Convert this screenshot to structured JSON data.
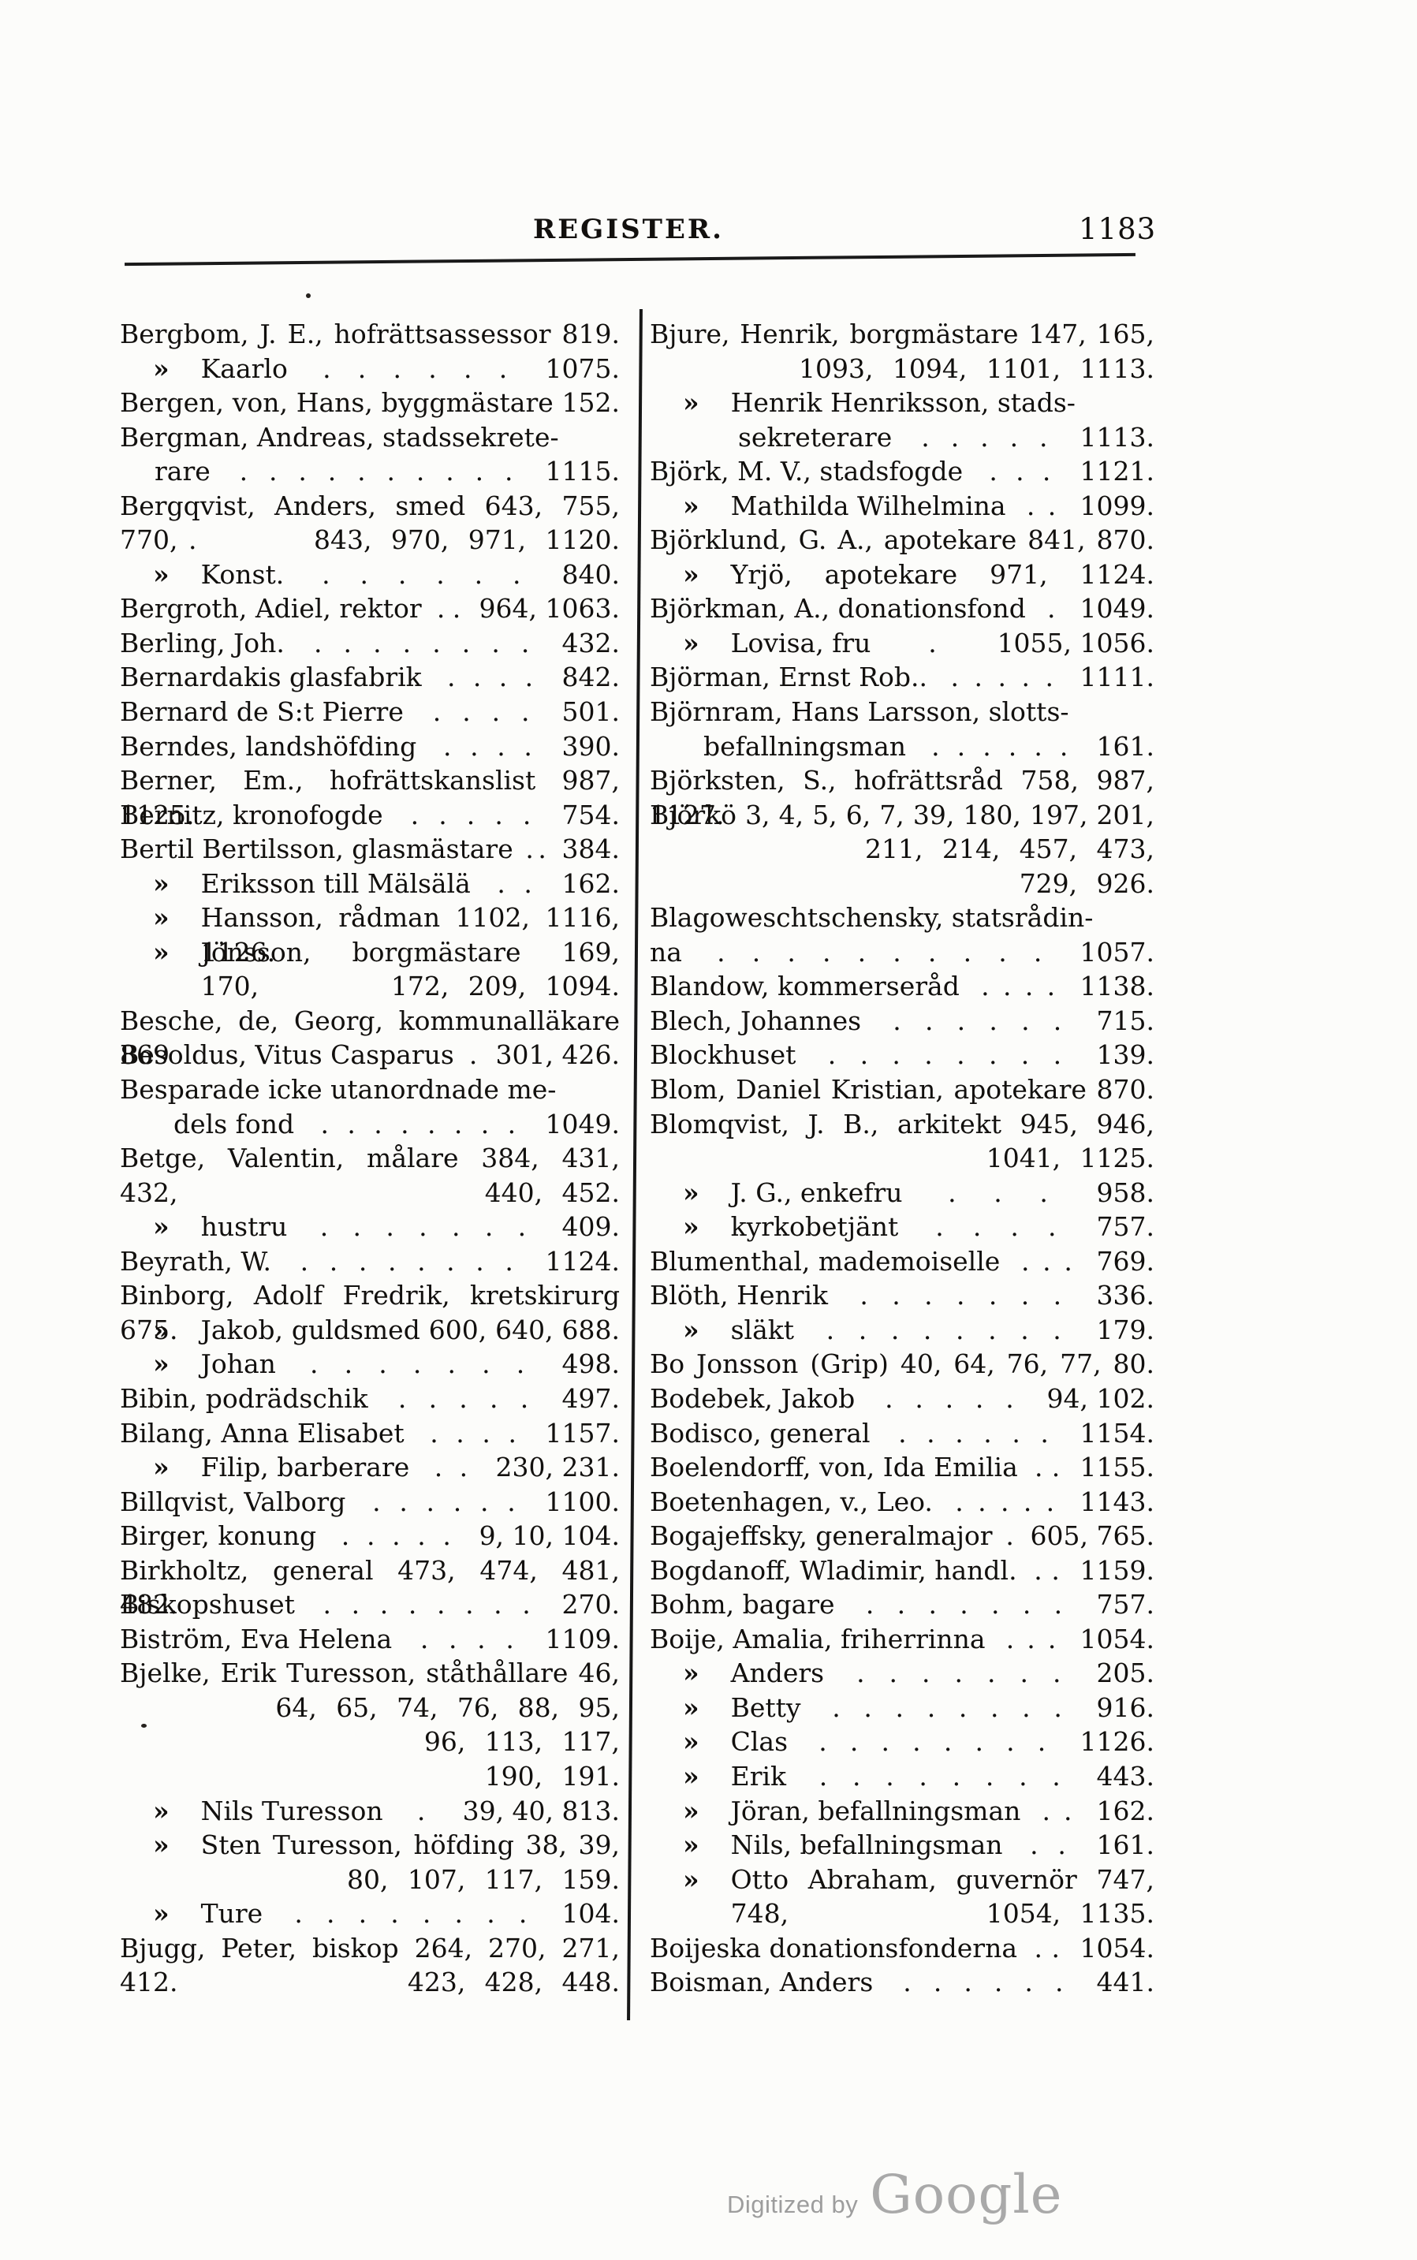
{
  "header": {
    "title": "REGISTER.",
    "page_number": "1183"
  },
  "footer": {
    "digitized_by": "Digitized by",
    "brand": "Google"
  },
  "index": {
    "left": [
      {
        "s": "m",
        "t": "Bergbom, J. E., hofrättsassessor",
        "d": "",
        "p": "819."
      },
      {
        "s": "s",
        "m": "»",
        "t": "Kaarlo",
        "d": ". . . . . .",
        "p": "1075."
      },
      {
        "s": "m",
        "t": "Bergen, von, Hans, byggmästare",
        "d": "",
        "p": "152."
      },
      {
        "s": "m",
        "t": "Bergman, Andreas, stadssekrete-",
        "d": "",
        "p": ""
      },
      {
        "s": "h1",
        "t": "rare",
        "d": ". . . . . . . . . .",
        "p": "1115."
      },
      {
        "s": "m",
        "t": "Bergqvist, Anders, smed",
        "d": "",
        "p": "643, 755, 770,"
      },
      {
        "s": "c",
        "m": ".",
        "t": "",
        "d": "",
        "p": "843, 970, 971, 1120."
      },
      {
        "s": "s",
        "m": "»",
        "t": "Konst.",
        "d": ". . . . . .",
        "p": "840."
      },
      {
        "s": "m",
        "t": "Bergroth, Adiel, rektor",
        "d": ". .",
        "p": "964, 1063."
      },
      {
        "s": "m",
        "t": "Berling, Joh.",
        "d": ". . . . . . . .",
        "p": "432."
      },
      {
        "s": "m",
        "t": "Bernardakis glasfabrik",
        "d": ". . . .",
        "p": "842."
      },
      {
        "s": "m",
        "t": "Bernard de S:t Pierre",
        "d": ". . . .",
        "p": "501."
      },
      {
        "s": "m",
        "t": "Berndes, landshöfding",
        "d": ". . . .",
        "p": "390."
      },
      {
        "s": "m",
        "t": "Berner, Em., hofrättskanslist",
        "d": "",
        "p": "987, 1125."
      },
      {
        "s": "m",
        "t": "Bernitz, kronofogde",
        "d": ". . . . .",
        "p": "754."
      },
      {
        "s": "m",
        "t": "Bertil Bertilsson, glasmästare",
        "d": ". .",
        "p": "384."
      },
      {
        "s": "s",
        "m": "»",
        "t": "Eriksson till Mälsälä",
        "d": ". .",
        "p": "162."
      },
      {
        "s": "s",
        "m": "»",
        "t": "Hansson, rådman",
        "d": "",
        "p": "1102, 1116, 1126."
      },
      {
        "s": "s",
        "m": "»",
        "t": "Jönsson, borgmästare",
        "d": "",
        "p": "169, 170,"
      },
      {
        "s": "c",
        "t": "",
        "d": "",
        "p": "172, 209, 1094."
      },
      {
        "s": "m",
        "t": "Besche, de, Georg, kommunalläkare",
        "d": "",
        "p": "869"
      },
      {
        "s": "m",
        "t": "Besoldus, Vitus Casparus",
        "d": ".",
        "p": "301, 426."
      },
      {
        "s": "m",
        "t": "Besparade icke utanordnade me-",
        "d": "",
        "p": ""
      },
      {
        "s": "h2",
        "t": "dels fond",
        "d": ". . . . . . . .",
        "p": "1049."
      },
      {
        "s": "m",
        "t": "Betge, Valentin, målare",
        "d": "",
        "p": "384, 431, 432,"
      },
      {
        "s": "c",
        "t": "",
        "d": "",
        "p": "440, 452."
      },
      {
        "s": "s",
        "m": "»",
        "t": "hustru",
        "d": ". . . . . . .",
        "p": "409."
      },
      {
        "s": "m",
        "t": "Beyrath, W.",
        "d": ". . . . . . . .",
        "p": "1124."
      },
      {
        "s": "m",
        "t": "Binborg, Adolf Fredrik, kretskirurg",
        "d": "",
        "p": "675."
      },
      {
        "s": "s",
        "m": "»",
        "t": "Jakob, guldsmed",
        "d": "",
        "p": "600, 640, 688."
      },
      {
        "s": "s",
        "m": "»",
        "t": "Johan",
        "d": ". . . . . . .",
        "p": "498."
      },
      {
        "s": "m",
        "t": "Bibin, podrädschik",
        "d": ". . . . .",
        "p": "497."
      },
      {
        "s": "m",
        "t": "Bilang, Anna Elisabet",
        "d": ". . . .",
        "p": "1157."
      },
      {
        "s": "s",
        "m": "»",
        "t": "Filip, barberare",
        "d": ". .",
        "p": "230, 231."
      },
      {
        "s": "m",
        "t": "Billqvist, Valborg",
        "d": ". . . . . .",
        "p": "1100."
      },
      {
        "s": "m",
        "t": "Birger, konung",
        "d": ". . . . .",
        "p": "9, 10, 104."
      },
      {
        "s": "m",
        "t": "Birkholtz, general",
        "d": "",
        "p": "473, 474, 481, 482."
      },
      {
        "s": "m",
        "t": "Biskopshuset",
        "d": ". . . . . . . .",
        "p": "270."
      },
      {
        "s": "m",
        "t": "Biström, Eva Helena",
        "d": ". . . .",
        "p": "1109."
      },
      {
        "s": "m",
        "t": "Bjelke, Erik Turesson, ståthållare",
        "d": "",
        "p": "46,"
      },
      {
        "s": "c",
        "t": "",
        "d": "",
        "p": "64, 65, 74, 76, 88, 95,"
      },
      {
        "s": "c",
        "t": "",
        "d": "",
        "p": "96, 113, 117,"
      },
      {
        "s": "c",
        "t": "",
        "d": "",
        "p": "190, 191."
      },
      {
        "s": "s",
        "m": "»",
        "t": "Nils Turesson",
        "d": ".",
        "p": "39, 40, 813."
      },
      {
        "s": "s",
        "m": "»",
        "t": "Sten Turesson, höfding",
        "d": "",
        "p": "38, 39,"
      },
      {
        "s": "c",
        "t": "",
        "d": "",
        "p": "80, 107, 117, 159."
      },
      {
        "s": "s",
        "m": "»",
        "t": "Ture",
        "d": ". . . . . . . .",
        "p": "104."
      },
      {
        "s": "m",
        "t": "Bjugg, Peter, biskop",
        "d": "",
        "p": "264, 270, 271, 412."
      },
      {
        "s": "c",
        "t": "",
        "d": "",
        "p": "423, 428, 448."
      }
    ],
    "right": [
      {
        "s": "m",
        "t": "Bjure, Henrik, borgmästare",
        "d": "",
        "p": "147, 165,"
      },
      {
        "s": "c",
        "t": "",
        "d": "",
        "p": "1093, 1094, 1101, 1113."
      },
      {
        "s": "s",
        "m": "»",
        "t": "Henrik Henriksson, stads-",
        "d": "",
        "p": ""
      },
      {
        "s": "h3",
        "t": "sekreterare",
        "d": ". . . . .",
        "p": "1113."
      },
      {
        "s": "m",
        "t": "Björk, M. V., stadsfogde",
        "d": ". . .",
        "p": "1121."
      },
      {
        "s": "s",
        "m": "»",
        "t": "Mathilda Wilhelmina",
        "d": ". .",
        "p": "1099."
      },
      {
        "s": "m",
        "t": "Björklund, G. A., apotekare",
        "d": "",
        "p": "841, 870."
      },
      {
        "s": "s",
        "m": "»",
        "t": "Yrjö, apotekare",
        "d": "",
        "p": "971, 1124."
      },
      {
        "s": "m",
        "t": "Björkman, A., donationsfond",
        "d": ".",
        "p": "1049."
      },
      {
        "s": "s",
        "m": "»",
        "t": "Lovisa, fru",
        "d": ".",
        "p": "1055, 1056."
      },
      {
        "s": "m",
        "t": "Björman, Ernst Rob..",
        "d": ". . . . .",
        "p": "1111."
      },
      {
        "s": "m",
        "t": "Björnram, Hans Larsson, slotts-",
        "d": "",
        "p": ""
      },
      {
        "s": "h2",
        "t": "befallningsman",
        "d": ". . . . . .",
        "p": "161."
      },
      {
        "s": "m",
        "t": "Björksten, S., hofrättsråd",
        "d": "",
        "p": "758, 987, 1127."
      },
      {
        "s": "m",
        "t": "Björkö",
        "d": "",
        "p": "3, 4, 5, 6, 7, 39, 180, 197, 201,"
      },
      {
        "s": "c",
        "t": "",
        "d": "",
        "p": "211, 214, 457, 473,"
      },
      {
        "s": "c",
        "t": "",
        "d": "",
        "p": "729, 926."
      },
      {
        "s": "m",
        "t": "Blagoweschtschensky, statsrådin-",
        "d": "",
        "p": ""
      },
      {
        "s": "m",
        "t": "na",
        "d": ". . . . . . . . . .",
        "p": "1057."
      },
      {
        "s": "m",
        "t": "Blandow, kommerseråd",
        "d": ". . . .",
        "p": "1138."
      },
      {
        "s": "m",
        "t": "Blech, Johannes",
        "d": ". . . . . .",
        "p": "715."
      },
      {
        "s": "m",
        "t": "Blockhuset",
        "d": ". . . . . . . .",
        "p": "139."
      },
      {
        "s": "m",
        "t": "Blom, Daniel Kristian, apotekare",
        "d": "",
        "p": "870."
      },
      {
        "s": "m",
        "t": "Blomqvist, J. B., arkitekt",
        "d": "",
        "p": "945, 946,"
      },
      {
        "s": "c",
        "t": "",
        "d": "",
        "p": "1041, 1125."
      },
      {
        "s": "s",
        "m": "»",
        "t": "J. G., enkefru",
        "d": ". . .",
        "p": "958."
      },
      {
        "s": "s",
        "m": "»",
        "t": "kyrkobetjänt",
        "d": ". . . .",
        "p": "757."
      },
      {
        "s": "m",
        "t": "Blumenthal, mademoiselle",
        "d": ". . .",
        "p": "769."
      },
      {
        "s": "m",
        "t": "Blöth, Henrik",
        "d": ". . . . . . .",
        "p": "336."
      },
      {
        "s": "s",
        "m": "»",
        "t": "släkt",
        "d": ". . . . . . . .",
        "p": "179."
      },
      {
        "s": "m",
        "t": "Bo Jonsson (Grip)",
        "d": "",
        "p": "40, 64, 76, 77, 80."
      },
      {
        "s": "m",
        "t": "Bodebek, Jakob",
        "d": ". . . . .",
        "p": "94, 102."
      },
      {
        "s": "m",
        "t": "Bodisco, general",
        "d": ". . . . . .",
        "p": "1154."
      },
      {
        "s": "m",
        "t": "Boelendorff, von, Ida Emilia",
        "d": ". .",
        "p": "1155."
      },
      {
        "s": "m",
        "t": "Boetenhagen, v., Leo.",
        "d": ". . . . .",
        "p": "1143."
      },
      {
        "s": "m",
        "t": "Bogajeffsky, generalmajor",
        "d": ".",
        "p": "605, 765."
      },
      {
        "s": "m",
        "t": "Bogdanoff, Wladimir, handl.",
        "d": ". .",
        "p": "1159."
      },
      {
        "s": "m",
        "t": "Bohm, bagare",
        "d": ". . . . . . .",
        "p": "757."
      },
      {
        "s": "m",
        "t": "Boije, Amalia, friherrinna",
        "d": ". . .",
        "p": "1054."
      },
      {
        "s": "s",
        "m": "»",
        "t": "Anders",
        "d": ". . . . . . .",
        "p": "205."
      },
      {
        "s": "s",
        "m": "»",
        "t": "Betty",
        "d": ". . . . . . . .",
        "p": "916."
      },
      {
        "s": "s",
        "m": "»",
        "t": "Clas",
        "d": ". . . . . . . .",
        "p": "1126."
      },
      {
        "s": "s",
        "m": "»",
        "t": "Erik",
        "d": ". . . . . . . .",
        "p": "443."
      },
      {
        "s": "s",
        "m": "»",
        "t": "Jöran, befallningsman",
        "d": ". .",
        "p": "162."
      },
      {
        "s": "s",
        "m": "»",
        "t": "Nils, befallningsman",
        "d": ". .",
        "p": "161."
      },
      {
        "s": "s",
        "m": "»",
        "t": "Otto Abraham, guvernör",
        "d": "",
        "p": "747, 748,"
      },
      {
        "s": "c",
        "t": "",
        "d": "",
        "p": "1054, 1135."
      },
      {
        "s": "m",
        "t": "Boijeska donationsfonderna",
        "d": ". .",
        "p": "1054."
      },
      {
        "s": "m",
        "t": "Boisman, Anders",
        "d": ". . . . . .",
        "p": "441."
      }
    ]
  }
}
